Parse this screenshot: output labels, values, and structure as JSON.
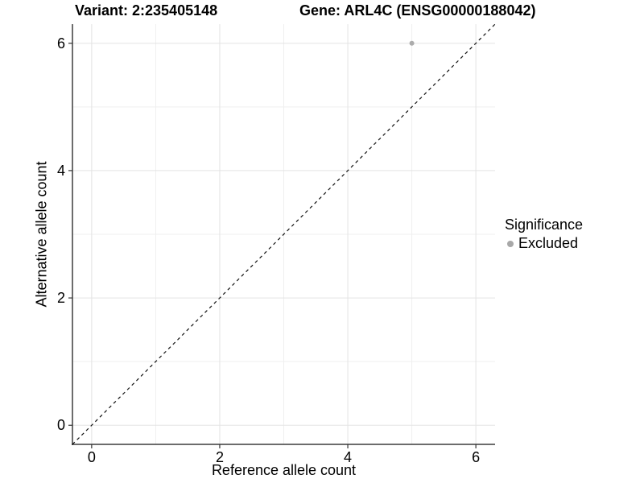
{
  "chart_data": {
    "type": "scatter",
    "title_left": "Variant: 2:235405148",
    "title_right": "Gene: ARL4C (ENSG00000188042)",
    "xlabel": "Reference allele count",
    "ylabel": "Alternative allele count",
    "xlim": [
      -0.3,
      6.3
    ],
    "ylim": [
      -0.3,
      6.3
    ],
    "x_major_ticks": [
      0,
      2,
      4,
      6
    ],
    "y_major_ticks": [
      0,
      2,
      4,
      6
    ],
    "x_grid_major": [
      0,
      2,
      4,
      6
    ],
    "x_grid_minor": [
      1,
      3,
      5
    ],
    "y_grid_major": [
      0,
      2,
      4,
      6
    ],
    "y_grid_minor": [
      1,
      3,
      5
    ],
    "grid": true,
    "points": [
      {
        "x": 5,
        "y": 6,
        "series": "Excluded"
      }
    ],
    "identity_line": {
      "label": "y = x",
      "style": "dashed",
      "from": -0.3,
      "to": 6.3
    },
    "legend": {
      "title": "Significance",
      "position": "right",
      "entries": [
        {
          "label": "Excluded",
          "color": "#a8a8a8"
        }
      ]
    },
    "colors": {
      "grid_major": "#e3e3e3",
      "grid_minor": "#efefef",
      "axis_line": "#3c3c3c",
      "tick_mark": "#333333",
      "point": "#acacac",
      "identity_line": "#111111",
      "text": "#000000",
      "background": "#ffffff"
    }
  }
}
